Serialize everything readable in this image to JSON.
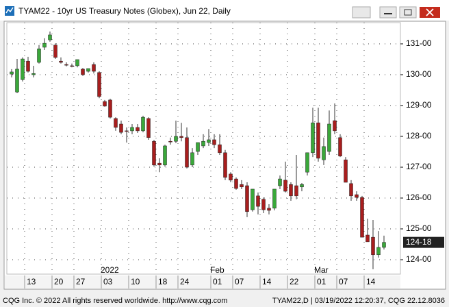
{
  "chart_data": {
    "type": "candlestick",
    "title": "TYAM22 - 10yr US Treasury Notes (Globex), Jun 22, Daily",
    "footer_left": "CQG Inc. © 2022 All rights reserved worldwide. http://www.cqg.com",
    "footer_right": "TYAM22,D | 03/19/2022 12:20:37, CQG 22.12.8036",
    "last_price_label": "124-18",
    "up_color": "#3aa83a",
    "down_color": "#a81e1e",
    "grid": true,
    "ylim": [
      123.533,
      131.689
    ],
    "yticks": [
      {
        "value": 124,
        "label": "124-00"
      },
      {
        "value": 125,
        "label": "125-00"
      },
      {
        "value": 126,
        "label": "126-00"
      },
      {
        "value": 127,
        "label": "127-00"
      },
      {
        "value": 128,
        "label": "128-00"
      },
      {
        "value": 129,
        "label": "129-00"
      },
      {
        "value": 130,
        "label": "130-00"
      },
      {
        "value": 131,
        "label": "131-00"
      }
    ],
    "categories": [
      null,
      null,
      null,
      "13",
      null,
      null,
      null,
      null,
      "20",
      null,
      null,
      null,
      "27",
      null,
      null,
      null,
      null,
      "03",
      null,
      null,
      null,
      null,
      "10",
      null,
      null,
      null,
      null,
      "18",
      null,
      null,
      null,
      "24",
      null,
      null,
      null,
      null,
      null,
      "01",
      null,
      null,
      null,
      "07",
      null,
      null,
      null,
      null,
      "14",
      null,
      null,
      null,
      null,
      "22",
      null,
      null,
      null,
      null,
      "01",
      null,
      null,
      null,
      "07",
      null,
      null,
      null,
      null,
      "14",
      null,
      null,
      null
    ],
    "periods": [
      null,
      null,
      null,
      null,
      null,
      null,
      null,
      null,
      null,
      null,
      null,
      null,
      null,
      null,
      null,
      null,
      null,
      "2022",
      null,
      null,
      null,
      null,
      null,
      null,
      null,
      null,
      null,
      null,
      null,
      null,
      null,
      null,
      null,
      null,
      null,
      null,
      null,
      "Feb",
      null,
      null,
      null,
      null,
      null,
      null,
      null,
      null,
      null,
      null,
      null,
      null,
      null,
      null,
      null,
      null,
      null,
      null,
      "Mar",
      null,
      null,
      null,
      null,
      null,
      null,
      null,
      null,
      null,
      null,
      null,
      null
    ],
    "open": [
      130.02,
      129.44,
      129.84,
      130.44,
      130.0,
      130.4,
      130.89,
      131.13,
      130.96,
      130.44,
      130.33,
      130.29,
      130.29,
      130.18,
      130.11,
      130.33,
      130.07,
      129.13,
      129.18,
      128.58,
      128.4,
      128.18,
      128.18,
      128.29,
      128.18,
      128.58,
      127.84,
      127.13,
      127.07,
      127.84,
      127.84,
      128.0,
      127.96,
      127.07,
      127.51,
      127.69,
      127.8,
      127.89,
      127.73,
      127.47,
      126.78,
      126.62,
      126.44,
      126.4,
      125.62,
      126.07,
      125.96,
      125.67,
      125.67,
      126.4,
      126.58,
      126.44,
      126.4,
      126.36,
      126.84,
      127.47,
      128.44,
      127.24,
      127.51,
      128.51,
      127.96,
      127.24,
      126.47,
      126.11,
      126.02,
      124.8,
      124.73,
      124.16,
      124.4
    ],
    "high": [
      130.18,
      130.51,
      130.56,
      130.58,
      130.29,
      130.96,
      131.18,
      131.4,
      131.02,
      130.56,
      130.4,
      130.36,
      130.49,
      130.22,
      130.2,
      130.4,
      130.11,
      129.18,
      129.22,
      128.62,
      128.51,
      128.29,
      128.4,
      128.4,
      128.67,
      128.62,
      127.89,
      127.29,
      127.73,
      127.96,
      128.51,
      128.44,
      128.29,
      127.62,
      127.8,
      128.07,
      128.24,
      128.07,
      128.07,
      127.56,
      126.84,
      126.67,
      126.58,
      126.51,
      126.29,
      126.18,
      126.02,
      125.8,
      126.29,
      126.73,
      127.18,
      126.51,
      127.4,
      126.49,
      127.47,
      128.93,
      128.93,
      127.96,
      128.84,
      129.07,
      128.07,
      127.33,
      126.58,
      126.22,
      126.07,
      125.33,
      125.29,
      124.93,
      124.78
    ],
    "low": [
      129.91,
      129.4,
      129.78,
      130.07,
      129.91,
      130.36,
      130.8,
      131.07,
      130.51,
      130.36,
      130.27,
      130.24,
      130.24,
      129.96,
      130.07,
      130.04,
      129.24,
      128.96,
      128.58,
      128.18,
      128.07,
      127.8,
      128.07,
      128.11,
      128.13,
      127.89,
      127.02,
      126.84,
      127.02,
      127.73,
      127.78,
      127.84,
      126.96,
      127.0,
      127.4,
      127.62,
      127.69,
      127.62,
      127.4,
      126.58,
      126.51,
      126.27,
      126.29,
      125.38,
      125.56,
      125.47,
      125.51,
      125.47,
      125.6,
      126.29,
      126.18,
      125.91,
      125.96,
      126.22,
      126.73,
      127.33,
      127.18,
      127.07,
      127.4,
      128.07,
      127.33,
      126.51,
      125.91,
      125.91,
      124.73,
      124.58,
      123.69,
      124.07,
      124.33
    ],
    "close": [
      130.09,
      130.18,
      130.51,
      130.11,
      130.04,
      130.84,
      131.02,
      131.29,
      130.56,
      130.4,
      130.31,
      130.27,
      130.49,
      130.0,
      130.2,
      130.11,
      129.29,
      128.98,
      128.62,
      128.29,
      128.13,
      128.16,
      128.29,
      128.18,
      128.62,
      127.96,
      127.07,
      127.07,
      127.69,
      127.82,
      128.0,
      127.96,
      127.0,
      127.47,
      127.8,
      127.84,
      127.89,
      127.73,
      127.47,
      126.67,
      126.58,
      126.31,
      126.36,
      125.56,
      126.29,
      125.73,
      125.62,
      125.6,
      126.29,
      126.62,
      126.22,
      126.07,
      126.07,
      126.44,
      127.47,
      128.44,
      127.29,
      127.67,
      128.4,
      128.18,
      127.36,
      126.51,
      126.07,
      126.02,
      124.73,
      124.58,
      124.16,
      124.4,
      124.5625
    ]
  }
}
